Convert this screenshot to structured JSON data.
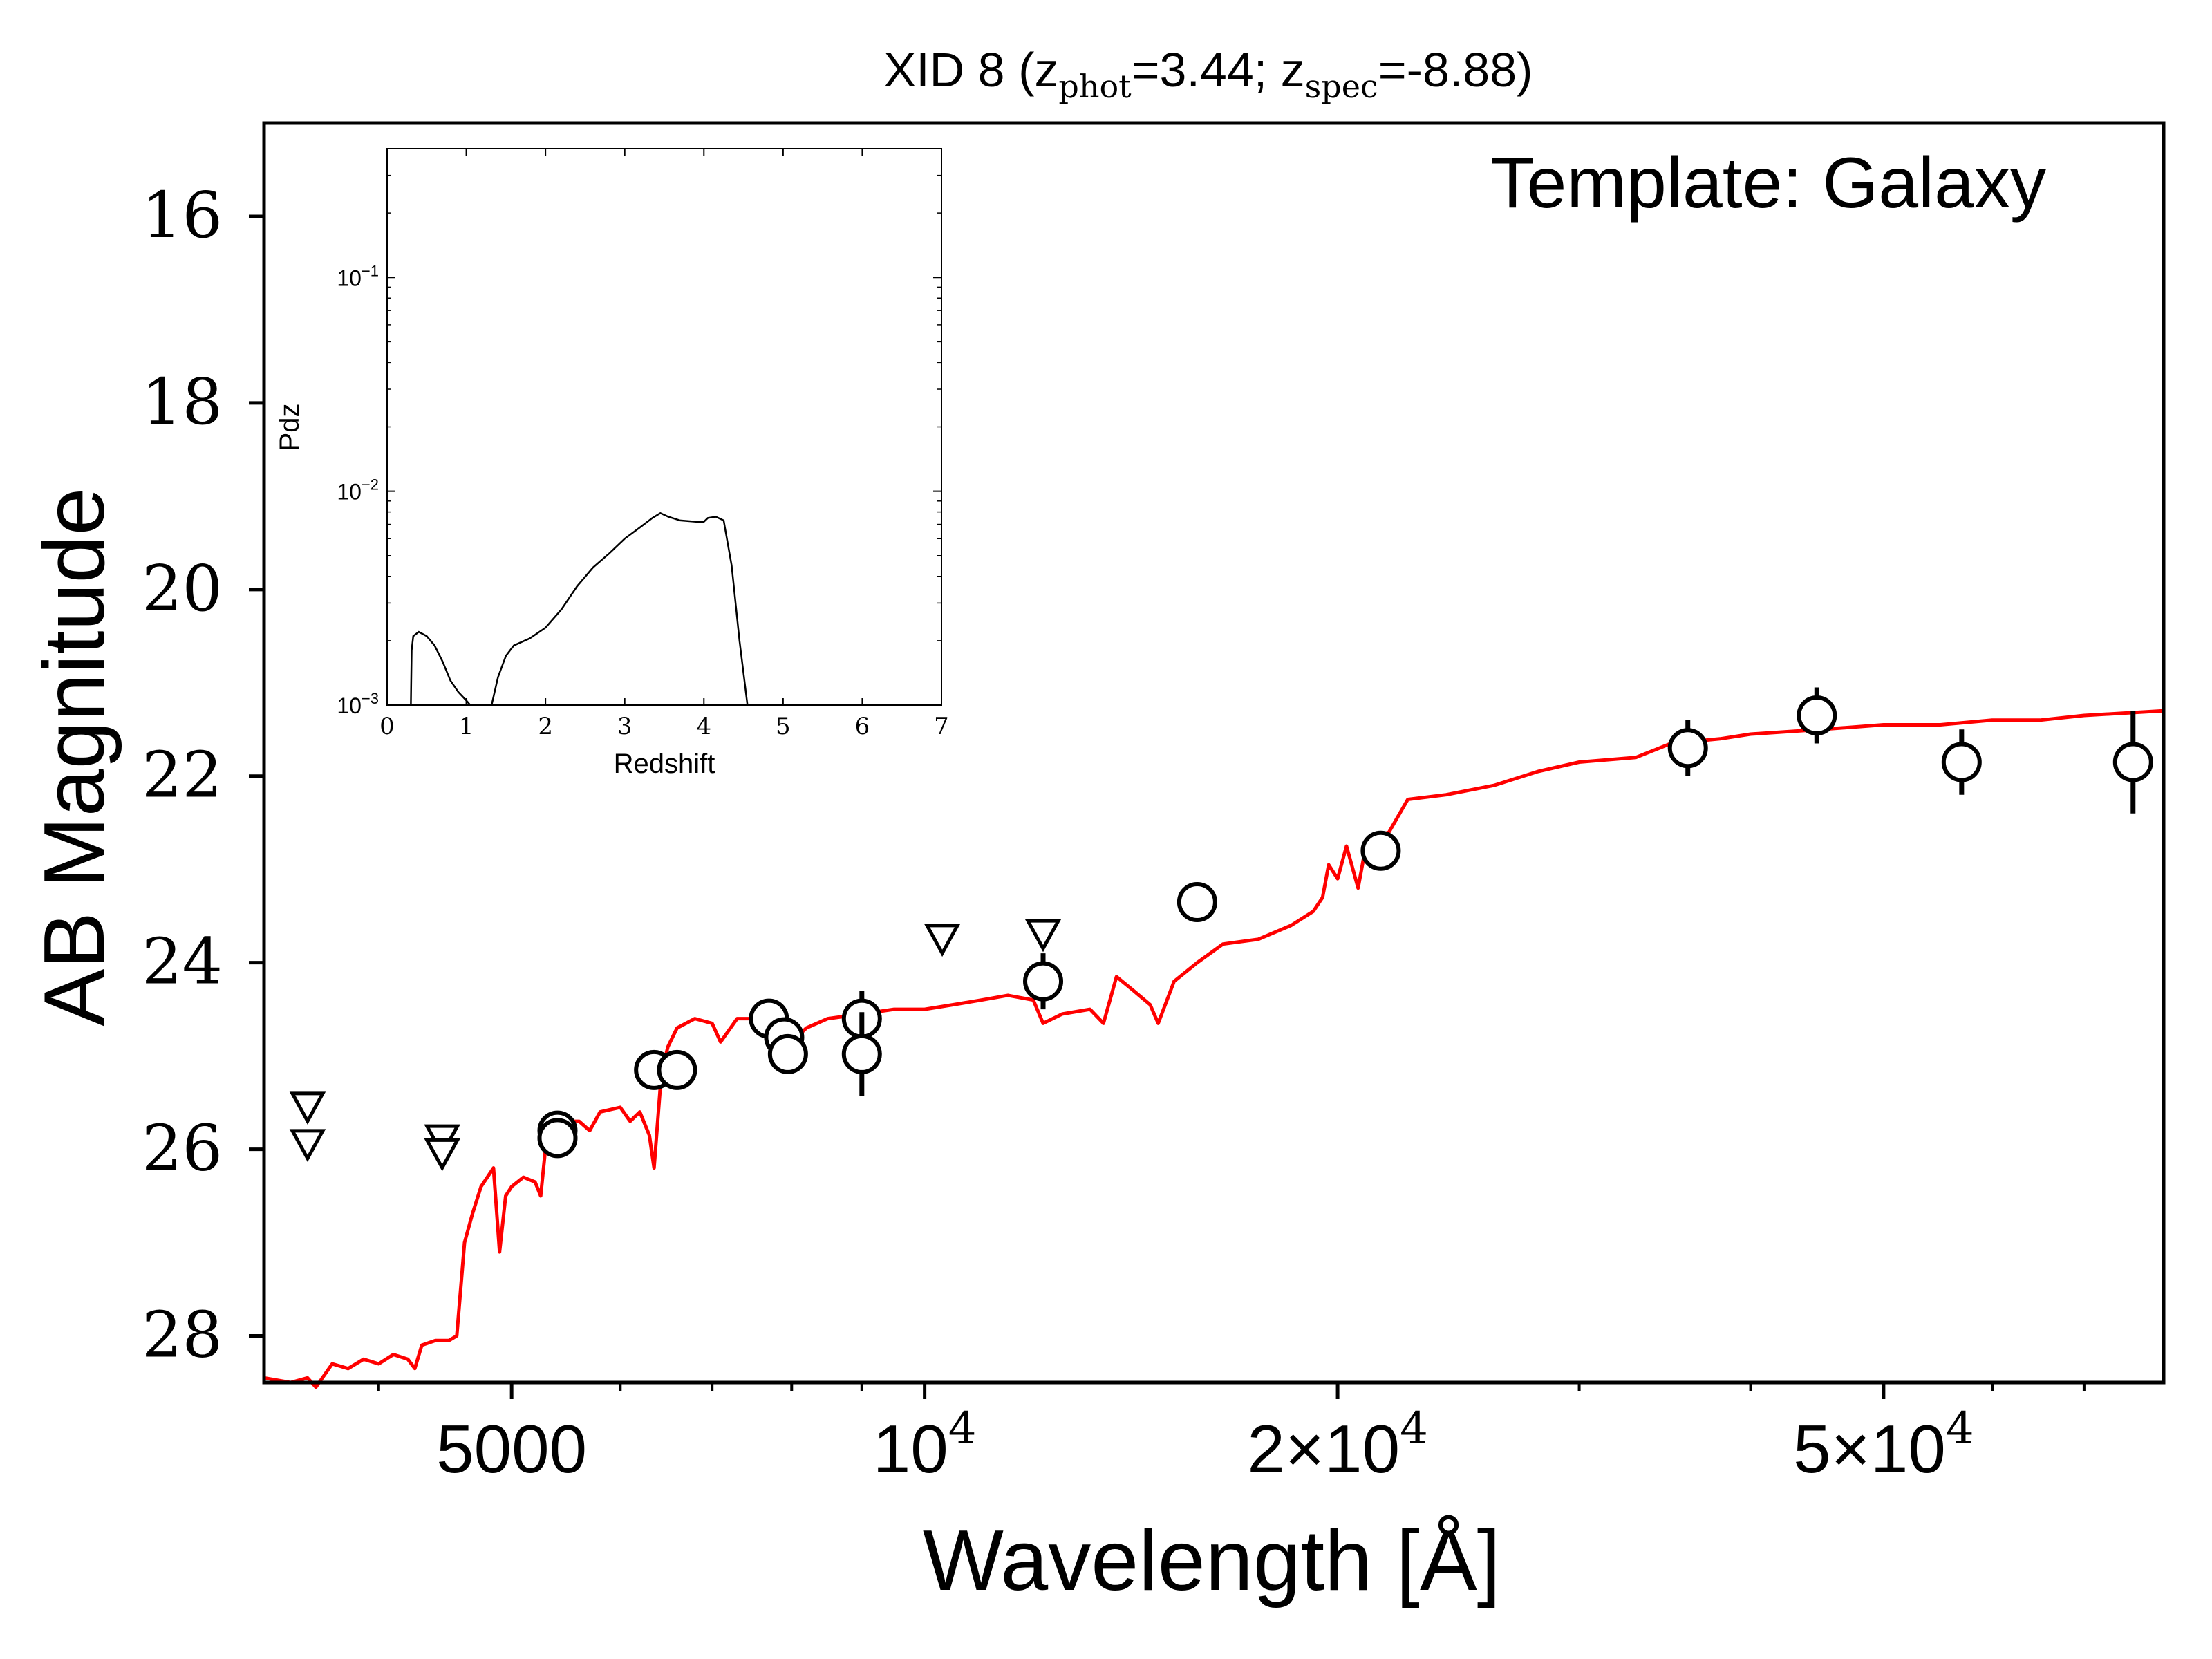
{
  "chart_data": [
    {
      "type": "scatter",
      "title": {
        "prefix": "XID 8 (z",
        "phot_sub": "phot",
        "phot_value": "=3.44; z",
        "spec_sub": "spec",
        "spec_value": "=-8.88)"
      },
      "annotation": "Template: Galaxy",
      "xlabel": "Wavelength [Å]",
      "ylabel": "AB Magnitude",
      "x_scale": "log",
      "y_inverted": true,
      "xlim": [
        3300,
        80000
      ],
      "ylim": [
        28.5,
        15.0
      ],
      "x_ticks": [
        {
          "value": 5000,
          "label": "5000"
        },
        {
          "value": 10000,
          "label": "10",
          "sup": "4"
        },
        {
          "value": 20000,
          "label": "2×10",
          "sup": "4"
        },
        {
          "value": 50000,
          "label": "5×10",
          "sup": "4"
        }
      ],
      "x_minor_ticks": [
        4000,
        6000,
        7000,
        8000,
        9000,
        30000,
        40000,
        60000,
        70000
      ],
      "y_ticks": [
        16,
        18,
        20,
        22,
        24,
        26,
        28
      ],
      "series": [
        {
          "kind": "template-spectrum",
          "color": "#ff0000",
          "points": [
            [
              3300,
              28.45
            ],
            [
              3450,
              28.5
            ],
            [
              3550,
              28.45
            ],
            [
              3600,
              28.55
            ],
            [
              3700,
              28.3
            ],
            [
              3800,
              28.35
            ],
            [
              3900,
              28.25
            ],
            [
              4000,
              28.3
            ],
            [
              4100,
              28.2
            ],
            [
              4200,
              28.25
            ],
            [
              4250,
              28.35
            ],
            [
              4300,
              28.1
            ],
            [
              4400,
              28.05
            ],
            [
              4500,
              28.05
            ],
            [
              4560,
              28.0
            ],
            [
              4620,
              27.0
            ],
            [
              4680,
              26.7
            ],
            [
              4750,
              26.4
            ],
            [
              4850,
              26.2
            ],
            [
              4900,
              27.1
            ],
            [
              4950,
              26.5
            ],
            [
              5000,
              26.4
            ],
            [
              5100,
              26.3
            ],
            [
              5200,
              26.35
            ],
            [
              5250,
              26.5
            ],
            [
              5300,
              25.9
            ],
            [
              5400,
              25.7
            ],
            [
              5600,
              25.7
            ],
            [
              5700,
              25.8
            ],
            [
              5800,
              25.6
            ],
            [
              6000,
              25.55
            ],
            [
              6100,
              25.7
            ],
            [
              6200,
              25.6
            ],
            [
              6300,
              25.85
            ],
            [
              6350,
              26.2
            ],
            [
              6420,
              25.3
            ],
            [
              6450,
              25.1
            ],
            [
              6500,
              24.9
            ],
            [
              6600,
              24.7
            ],
            [
              6800,
              24.6
            ],
            [
              7000,
              24.65
            ],
            [
              7100,
              24.85
            ],
            [
              7300,
              24.6
            ],
            [
              7600,
              24.6
            ],
            [
              7800,
              24.75
            ],
            [
              8000,
              24.85
            ],
            [
              8200,
              24.7
            ],
            [
              8500,
              24.6
            ],
            [
              9000,
              24.55
            ],
            [
              9500,
              24.5
            ],
            [
              10000,
              24.5
            ],
            [
              10500,
              24.45
            ],
            [
              11000,
              24.4
            ],
            [
              11500,
              24.35
            ],
            [
              12000,
              24.4
            ],
            [
              12200,
              24.65
            ],
            [
              12600,
              24.55
            ],
            [
              13200,
              24.5
            ],
            [
              13500,
              24.65
            ],
            [
              13800,
              24.15
            ],
            [
              14200,
              24.3
            ],
            [
              14600,
              24.45
            ],
            [
              14800,
              24.65
            ],
            [
              15200,
              24.2
            ],
            [
              15800,
              24.0
            ],
            [
              16500,
              23.8
            ],
            [
              17500,
              23.75
            ],
            [
              18500,
              23.6
            ],
            [
              19200,
              23.45
            ],
            [
              19500,
              23.3
            ],
            [
              19700,
              22.95
            ],
            [
              20000,
              23.1
            ],
            [
              20300,
              22.75
            ],
            [
              20700,
              23.2
            ],
            [
              21000,
              22.7
            ],
            [
              21800,
              22.6
            ],
            [
              22500,
              22.25
            ],
            [
              24000,
              22.2
            ],
            [
              26000,
              22.1
            ],
            [
              28000,
              21.95
            ],
            [
              30000,
              21.85
            ],
            [
              33000,
              21.8
            ],
            [
              35000,
              21.65
            ],
            [
              38000,
              21.6
            ],
            [
              40000,
              21.55
            ],
            [
              45000,
              21.5
            ],
            [
              50000,
              21.45
            ],
            [
              55000,
              21.45
            ],
            [
              60000,
              21.4
            ],
            [
              65000,
              21.4
            ],
            [
              70000,
              21.35
            ],
            [
              80000,
              21.3
            ]
          ]
        },
        {
          "kind": "photometry-detections",
          "points": [
            {
              "x": 5400,
              "y": 25.8,
              "err": 0.2
            },
            {
              "x": 5400,
              "y": 25.88,
              "err": 0.15
            },
            {
              "x": 6350,
              "y": 25.15,
              "err": 0.15
            },
            {
              "x": 6600,
              "y": 25.15,
              "err": 0.15
            },
            {
              "x": 7700,
              "y": 24.6,
              "err": 0.12
            },
            {
              "x": 7900,
              "y": 24.8,
              "err": 0.15
            },
            {
              "x": 7950,
              "y": 24.98,
              "err": 0.15
            },
            {
              "x": 9000,
              "y": 24.6,
              "err": 0.3
            },
            {
              "x": 9000,
              "y": 24.98,
              "err": 0.45
            },
            {
              "x": 12200,
              "y": 24.2,
              "err": 0.3
            },
            {
              "x": 15800,
              "y": 23.35,
              "err": 0.12
            },
            {
              "x": 21500,
              "y": 22.8,
              "err": 0.15
            },
            {
              "x": 36000,
              "y": 21.7,
              "err": 0.3
            },
            {
              "x": 44700,
              "y": 21.35,
              "err": 0.3
            },
            {
              "x": 57000,
              "y": 21.85,
              "err": 0.35
            },
            {
              "x": 76000,
              "y": 21.85,
              "err": 0.55
            }
          ]
        },
        {
          "kind": "upper-limits",
          "points": [
            {
              "x": 3550,
              "y": 25.55
            },
            {
              "x": 3550,
              "y": 25.95
            },
            {
              "x": 4450,
              "y": 25.9
            },
            {
              "x": 4450,
              "y": 26.05
            },
            {
              "x": 10300,
              "y": 23.75
            },
            {
              "x": 12200,
              "y": 23.7
            }
          ]
        }
      ]
    },
    {
      "type": "line",
      "name": "inset",
      "xlabel": "Redshift",
      "ylabel": "Pdz",
      "y_scale": "log",
      "xlim": [
        0,
        7
      ],
      "ylim": [
        0.001,
        0.4
      ],
      "x_ticks": [
        "0",
        "1",
        "2",
        "3",
        "4",
        "5",
        "6",
        "7"
      ],
      "y_ticks": [
        {
          "value": 0.1,
          "base": "10",
          "sup": "−1"
        },
        {
          "value": 0.01,
          "base": "10",
          "sup": "−2"
        },
        {
          "value": 0.001,
          "base": "10",
          "sup": "−3"
        }
      ],
      "series": [
        {
          "kind": "pdz",
          "color": "#000000",
          "segments": [
            [
              [
                0.3,
                0.001
              ],
              [
                0.31,
                0.0018
              ],
              [
                0.33,
                0.0021
              ],
              [
                0.4,
                0.0022
              ],
              [
                0.5,
                0.0021
              ],
              [
                0.6,
                0.0019
              ],
              [
                0.7,
                0.0016
              ],
              [
                0.8,
                0.0013
              ],
              [
                0.9,
                0.00115
              ],
              [
                1.0,
                0.00105
              ],
              [
                1.05,
                0.001
              ]
            ],
            [
              [
                1.32,
                0.001
              ],
              [
                1.4,
                0.00135
              ],
              [
                1.5,
                0.0017
              ],
              [
                1.6,
                0.0019
              ],
              [
                1.8,
                0.00205
              ],
              [
                2.0,
                0.0023
              ],
              [
                2.2,
                0.0028
              ],
              [
                2.4,
                0.0036
              ],
              [
                2.6,
                0.0044
              ],
              [
                2.8,
                0.0051
              ],
              [
                3.0,
                0.006
              ],
              [
                3.2,
                0.0068
              ],
              [
                3.35,
                0.0075
              ],
              [
                3.45,
                0.0079
              ],
              [
                3.55,
                0.0076
              ],
              [
                3.7,
                0.0073
              ],
              [
                3.9,
                0.0072
              ],
              [
                4.0,
                0.0072
              ],
              [
                4.05,
                0.0075
              ],
              [
                4.15,
                0.0076
              ],
              [
                4.25,
                0.0073
              ],
              [
                4.35,
                0.0045
              ],
              [
                4.45,
                0.002
              ],
              [
                4.55,
                0.001
              ]
            ]
          ]
        }
      ]
    }
  ]
}
